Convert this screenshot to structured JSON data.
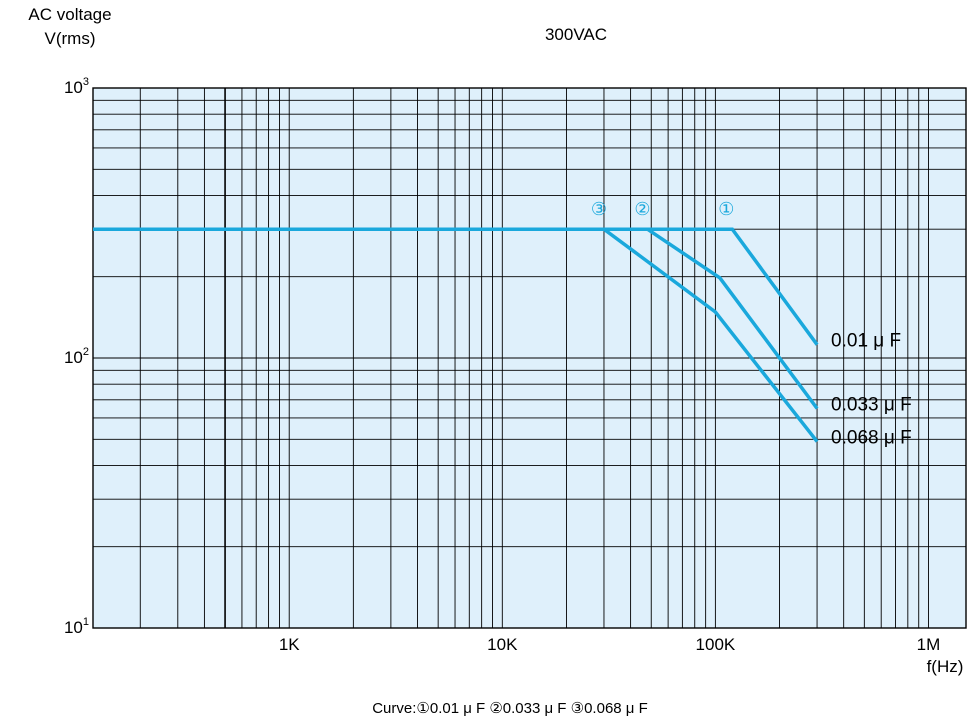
{
  "chart_data": {
    "type": "line",
    "title": "300VAC",
    "ylabel_line1": "AC voltage",
    "ylabel_line2": "V(rms)",
    "xlabel": "f(Hz)",
    "x_scale": "log",
    "y_scale": "log",
    "xlim": [
      120,
      1500000
    ],
    "ylim": [
      10,
      1000
    ],
    "grid": true,
    "x_ticks": [
      {
        "value": 1000,
        "label": "1K"
      },
      {
        "value": 10000,
        "label": "10K"
      },
      {
        "value": 100000,
        "label": "100K"
      },
      {
        "value": 1000000,
        "label": "1M"
      }
    ],
    "y_ticks": [
      {
        "value": 1000,
        "base": "10",
        "exp": "3"
      },
      {
        "value": 100,
        "base": "10",
        "exp": "2"
      },
      {
        "value": 10,
        "base": "10",
        "exp": "1"
      }
    ],
    "series": [
      {
        "name": "0.01μF",
        "marker": "①",
        "label": "0.01 μ F",
        "x": [
          120,
          120000,
          300000
        ],
        "y": [
          300,
          300,
          112
        ]
      },
      {
        "name": "0.033μF",
        "marker": "②",
        "label": "0.033 μ F",
        "x": [
          120,
          48000,
          105000,
          300000
        ],
        "y": [
          300,
          300,
          198,
          65
        ]
      },
      {
        "name": "0.068μF",
        "marker": "③",
        "label": "0.068 μ F",
        "x": [
          120,
          30000,
          100000,
          300000
        ],
        "y": [
          300,
          300,
          148,
          49
        ]
      }
    ],
    "caption": "Curve:①0.01 μ F ②0.033 μ F ③0.068 μ F",
    "colors": {
      "line": "#1aa8dc",
      "plot_bg": "#dff0fb",
      "grid": "#000000"
    }
  }
}
